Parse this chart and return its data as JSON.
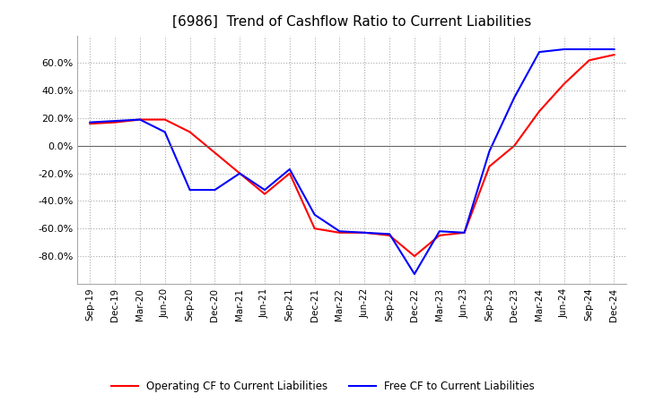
{
  "title": "[6986]  Trend of Cashflow Ratio to Current Liabilities",
  "x_labels": [
    "Sep-19",
    "Dec-19",
    "Mar-20",
    "Jun-20",
    "Sep-20",
    "Dec-20",
    "Mar-21",
    "Jun-21",
    "Sep-21",
    "Dec-21",
    "Mar-22",
    "Jun-22",
    "Sep-22",
    "Dec-22",
    "Mar-23",
    "Jun-23",
    "Sep-23",
    "Dec-23",
    "Mar-24",
    "Jun-24",
    "Sep-24",
    "Dec-24"
  ],
  "operating_cf": [
    0.16,
    0.17,
    0.19,
    0.19,
    0.1,
    -0.05,
    -0.2,
    -0.35,
    -0.2,
    -0.6,
    -0.63,
    -0.63,
    -0.65,
    -0.8,
    -0.65,
    -0.63,
    -0.15,
    0.0,
    0.25,
    0.45,
    0.62,
    0.66
  ],
  "free_cf": [
    0.17,
    0.18,
    0.19,
    0.1,
    -0.32,
    -0.32,
    -0.2,
    -0.32,
    -0.17,
    -0.5,
    -0.62,
    -0.63,
    -0.64,
    -0.93,
    -0.62,
    -0.63,
    -0.04,
    0.35,
    0.68,
    0.7,
    0.7,
    0.7
  ],
  "operating_color": "#ff0000",
  "free_color": "#0000ff",
  "ylim": [
    -1.0,
    0.8
  ],
  "yticks": [
    0.6,
    0.4,
    0.2,
    0.0,
    -0.2,
    -0.4,
    -0.6,
    -0.8
  ],
  "grid_color": "#aaaaaa",
  "background_color": "#ffffff",
  "title_fontsize": 11,
  "legend_labels": [
    "Operating CF to Current Liabilities",
    "Free CF to Current Liabilities"
  ]
}
